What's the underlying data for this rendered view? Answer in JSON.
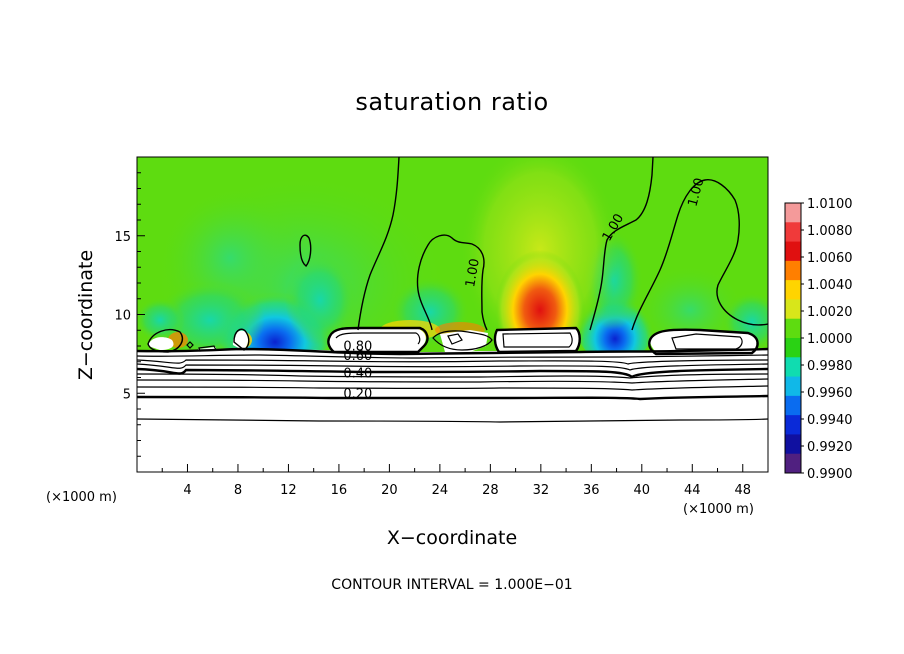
{
  "chart_data": {
    "type": "heatmap",
    "title": "saturation ratio",
    "xlabel": "X−coordinate",
    "ylabel": "Z−coordinate",
    "x_unit": "(×1000 m)",
    "y_unit": "(×1000 m)",
    "xlim": [
      0,
      50
    ],
    "ylim": [
      0,
      20
    ],
    "x_ticks": [
      "4",
      "8",
      "12",
      "16",
      "20",
      "24",
      "28",
      "32",
      "36",
      "40",
      "44",
      "48"
    ],
    "x_tick_values": [
      4,
      8,
      12,
      16,
      20,
      24,
      28,
      32,
      36,
      40,
      44,
      48
    ],
    "y_ticks": [
      "5",
      "10",
      "15"
    ],
    "y_tick_values": [
      5,
      10,
      15
    ],
    "colorbar": {
      "labels": [
        "1.0100",
        "1.0080",
        "1.0060",
        "1.0040",
        "1.0020",
        "1.0000",
        "0.9980",
        "0.9960",
        "0.9940",
        "0.9920",
        "0.9900"
      ],
      "min": 0.99,
      "max": 1.01,
      "colors": [
        "#f49a9a",
        "#f03a3a",
        "#e01010",
        "#ff7f00",
        "#ffd400",
        "#d8e61a",
        "#5edc10",
        "#2ad214",
        "#10dcb0",
        "#10b8e8",
        "#0a6cf0",
        "#0a2ad8",
        "#1010a0",
        "#502080"
      ]
    },
    "contour_labels": [
      {
        "text": "1.00",
        "x": 26.9,
        "z": 12.6
      },
      {
        "text": "1.00",
        "x": 38.0,
        "z": 15.4
      },
      {
        "text": "1.00",
        "x": 44.6,
        "z": 17.7
      },
      {
        "text": "0.80",
        "x": 17.5,
        "z": 7.7
      },
      {
        "text": "0.60",
        "x": 17.5,
        "z": 7.1
      },
      {
        "text": "0.40",
        "x": 17.5,
        "z": 6.0
      },
      {
        "text": "0.20",
        "x": 17.5,
        "z": 4.7
      }
    ],
    "contour_interval_text": "CONTOUR INTERVAL = 1.000E−01"
  }
}
